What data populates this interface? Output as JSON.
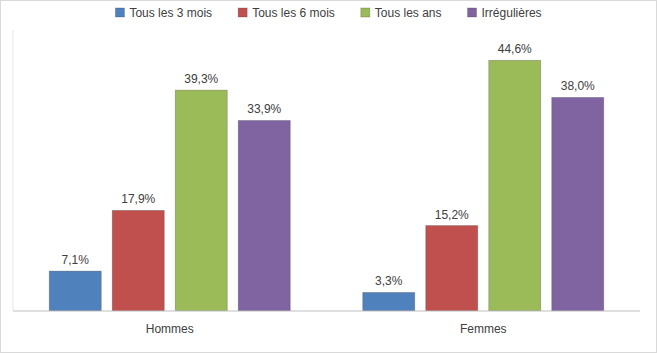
{
  "chart_data": {
    "type": "bar",
    "categories": [
      "Hommes",
      "Femmes"
    ],
    "series": [
      {
        "name": "Tous les 3 mois",
        "color": "#4f81bd",
        "values": [
          7.1,
          3.3
        ],
        "value_labels": [
          "7,1%",
          "3,3%"
        ]
      },
      {
        "name": "Tous les 6 mois",
        "color": "#c0504d",
        "values": [
          17.9,
          15.2
        ],
        "value_labels": [
          "17,9%",
          "15,2%"
        ]
      },
      {
        "name": "Tous les ans",
        "color": "#9bbb59",
        "values": [
          39.3,
          44.6
        ],
        "value_labels": [
          "39,3%",
          "44,6%"
        ]
      },
      {
        "name": "Irrégulières",
        "color": "#8064a2",
        "values": [
          33.9,
          38.0
        ],
        "value_labels": [
          "33,9%",
          "38,0%"
        ]
      }
    ],
    "ylim": [
      0,
      50
    ],
    "data_labels": true,
    "tick_labels": "x",
    "grid": false,
    "legend": "top"
  }
}
